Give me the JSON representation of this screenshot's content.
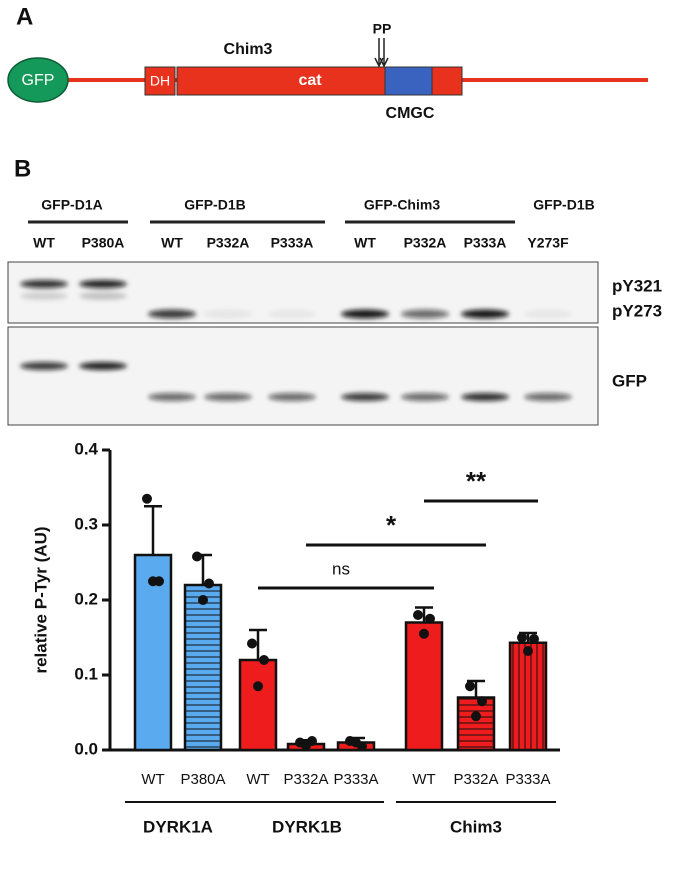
{
  "panel_a": {
    "label": "A",
    "domains": {
      "gfp": "GFP",
      "dh": "DH",
      "cat": "cat"
    },
    "construct": "Chim3",
    "motif": "PP",
    "insert": "CMGC"
  },
  "panel_b": {
    "label": "B",
    "blot_groups": [
      "GFP-D1A",
      "GFP-D1B",
      "GFP-Chim3",
      "GFP-D1B"
    ],
    "blot_lanes": [
      "WT",
      "P380A",
      "WT",
      "P332A",
      "P333A",
      "WT",
      "P332A",
      "P333A",
      "Y273F"
    ],
    "band_labels": [
      "pY321",
      "pY273",
      "GFP"
    ]
  },
  "chart_data": {
    "type": "bar",
    "ylabel": "relative P-Tyr (AU)",
    "categories": [
      "WT",
      "P380A",
      "WT",
      "P332A",
      "P333A",
      "WT",
      "P332A",
      "P333A"
    ],
    "groups": [
      {
        "name": "DYRK1A",
        "from": 0,
        "to": 1
      },
      {
        "name": "DYRK1B",
        "from": 2,
        "to": 4
      },
      {
        "name": "Chim3",
        "from": 5,
        "to": 7
      }
    ],
    "values": [
      0.26,
      0.22,
      0.12,
      0.008,
      0.01,
      0.17,
      0.07,
      0.143
    ],
    "errors": [
      0.065,
      0.04,
      0.04,
      0.005,
      0.006,
      0.02,
      0.022,
      0.013
    ],
    "points": [
      [
        0.335,
        0.225,
        0.225
      ],
      [
        0.258,
        0.222,
        0.2
      ],
      [
        0.142,
        0.12,
        0.085
      ],
      [
        0.01,
        0.012,
        0.006
      ],
      [
        0.012,
        0.005,
        0.01
      ],
      [
        0.18,
        0.175,
        0.155
      ],
      [
        0.085,
        0.065,
        0.045
      ],
      [
        0.15,
        0.148,
        0.132
      ]
    ],
    "colors": [
      "#5aaaf0",
      "#5aaaf0",
      "#ee1c1c",
      "#ee1c1c",
      "#ee1c1c",
      "#ee1c1c",
      "#ee1c1c",
      "#ee1c1c"
    ],
    "patterns": [
      "solid",
      "horizontal",
      "solid",
      "solid",
      "solid",
      "solid",
      "horizontal",
      "vertical"
    ],
    "comparisons": [
      {
        "from": 2,
        "to": 5,
        "label": "ns"
      },
      {
        "from": 3,
        "to": 6,
        "label": "*"
      },
      {
        "from": 5,
        "to": 7,
        "label": "**"
      }
    ],
    "ylim": [
      0,
      0.4
    ],
    "yticks": [
      {
        "value": 0,
        "label": "0.0"
      },
      0.1,
      0.2,
      0.3,
      0.4
    ]
  }
}
